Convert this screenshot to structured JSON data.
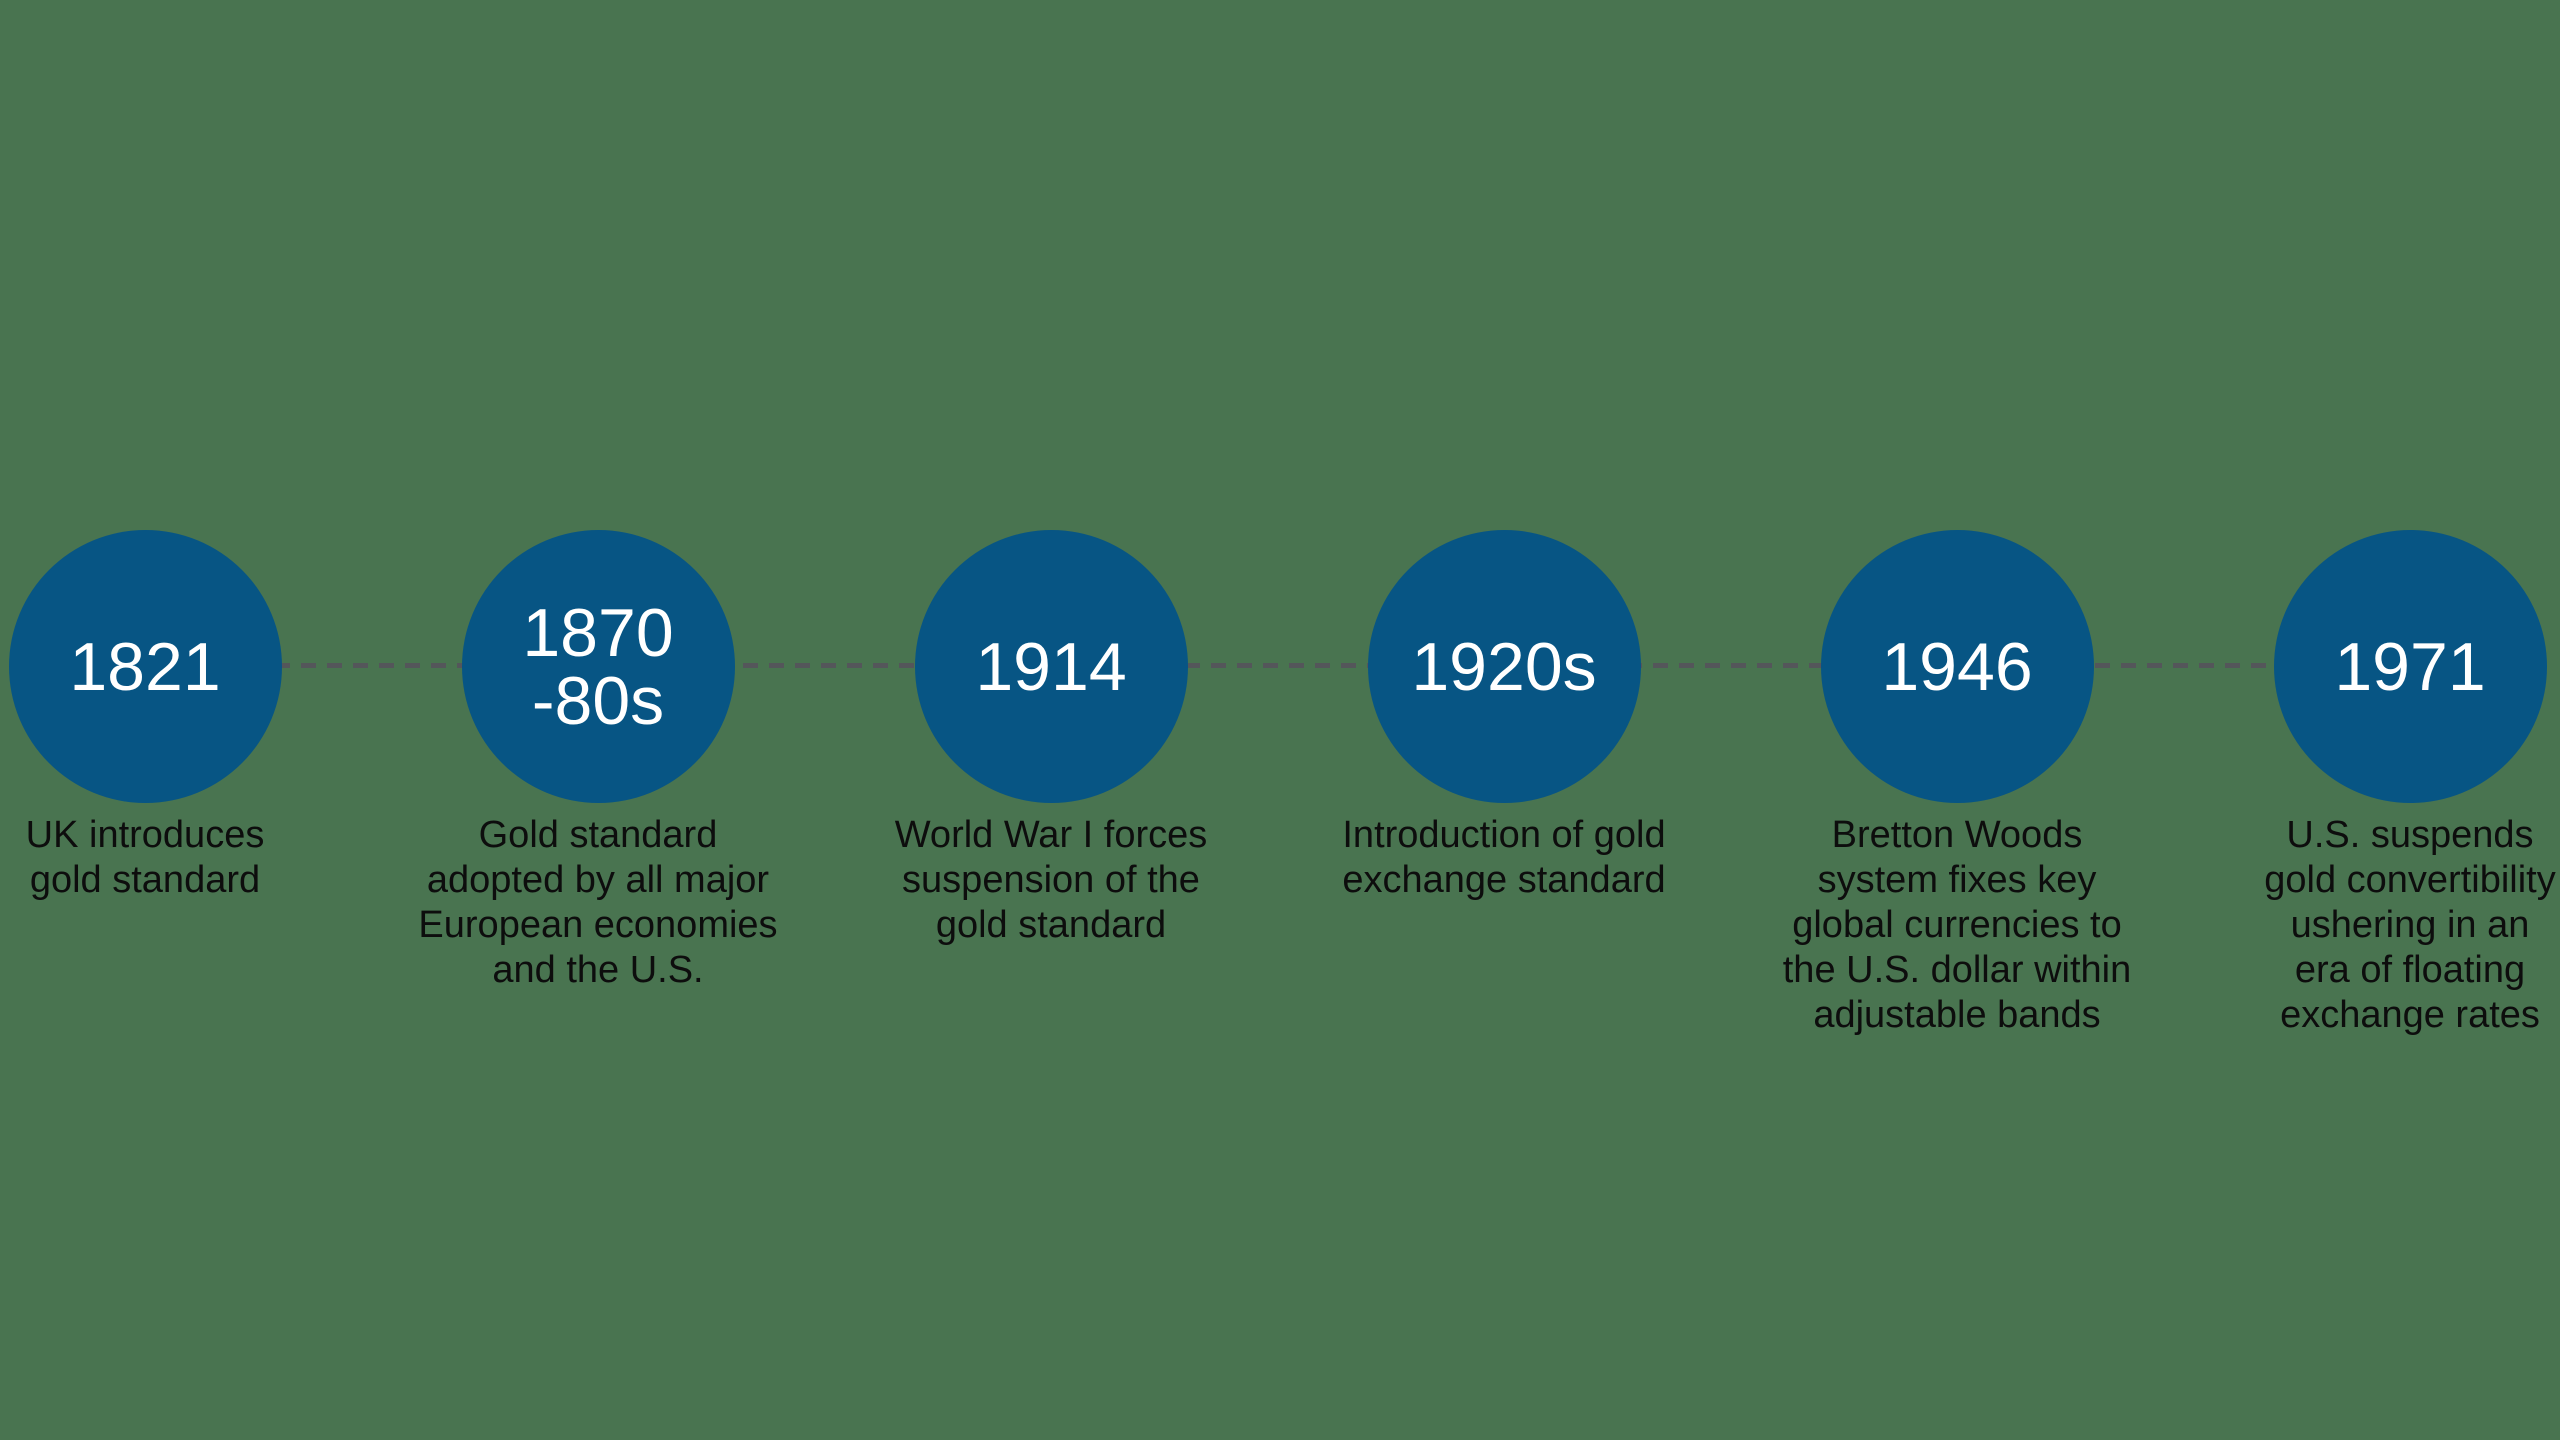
{
  "background_color": "#497450",
  "timeline": {
    "connector_color": "#54565A",
    "node_color": "#075584",
    "year_text_color": "#FFFFFF",
    "label_text_color": "#0D0D0D",
    "events": [
      {
        "year": "1821",
        "label": "UK introduces\ngold standard"
      },
      {
        "year": "1870\n-80s",
        "label": "Gold standard\nadopted by all major\nEuropean economies\nand the U.S."
      },
      {
        "year": "1914",
        "label": "World War I forces\nsuspension of the\ngold standard"
      },
      {
        "year": "1920s",
        "label": "Introduction of gold\nexchange standard"
      },
      {
        "year": "1946",
        "label": "Bretton Woods\nsystem fixes key\nglobal currencies to\nthe U.S. dollar within\nadjustable bands"
      },
      {
        "year": "1971",
        "label": "U.S. suspends\ngold convertibility\nushering in an\nera of floating\nexchange rates"
      }
    ]
  }
}
